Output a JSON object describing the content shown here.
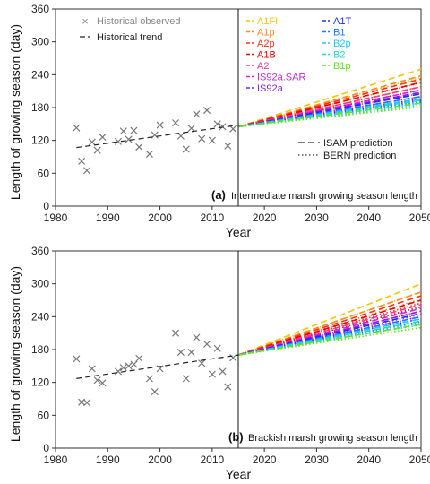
{
  "chart_data": [
    {
      "type": "scatter",
      "panel_label": "(a)",
      "title": "Intermediate marsh growing season length",
      "xlabel": "Year",
      "ylabel": "Length of growing season (day)",
      "xlim": [
        1980,
        2050
      ],
      "ylim": [
        0,
        360
      ],
      "xticks": [
        1980,
        1990,
        2000,
        2010,
        2020,
        2030,
        2040,
        2050
      ],
      "yticks": [
        0,
        60,
        120,
        180,
        240,
        300,
        360
      ],
      "observed": {
        "name": "Historical observed",
        "x": [
          1984,
          1985,
          1986,
          1987,
          1988,
          1989,
          1992,
          1993,
          1994,
          1995,
          1996,
          1998,
          1999,
          2000,
          2003,
          2004,
          2005,
          2006,
          2007,
          2008,
          2009,
          2010,
          2011,
          2012,
          2013,
          2014
        ],
        "y": [
          143,
          82,
          65,
          117,
          102,
          126,
          118,
          137,
          122,
          138,
          108,
          95,
          130,
          148,
          152,
          128,
          104,
          142,
          168,
          123,
          175,
          120,
          150,
          145,
          110,
          141
        ]
      },
      "trend": {
        "name": "Historical trend",
        "x": [
          1984,
          2015
        ],
        "y": [
          107,
          148
        ]
      },
      "divider_year": 2015,
      "projection_start": {
        "year": 2015,
        "value": 145
      },
      "scenarios": [
        {
          "name": "A1FI",
          "color": "#f5c400",
          "isam_2050": 250,
          "bern_2050": 235
        },
        {
          "name": "A1p",
          "color": "#ff8a1c",
          "isam_2050": 238,
          "bern_2050": 225
        },
        {
          "name": "A2p",
          "color": "#ff2d1f",
          "isam_2050": 232,
          "bern_2050": 218
        },
        {
          "name": "A1B",
          "color": "#e80000",
          "isam_2050": 226,
          "bern_2050": 212
        },
        {
          "name": "A2",
          "color": "#ff3399",
          "isam_2050": 218,
          "bern_2050": 206
        },
        {
          "name": "IS92a.SAR",
          "color": "#c428d8",
          "isam_2050": 212,
          "bern_2050": 200
        },
        {
          "name": "IS92a",
          "color": "#8a18e6",
          "isam_2050": 208,
          "bern_2050": 196
        },
        {
          "name": "A1T",
          "color": "#1c2cff",
          "isam_2050": 205,
          "bern_2050": 193
        },
        {
          "name": "B1",
          "color": "#1a78ff",
          "isam_2050": 200,
          "bern_2050": 190
        },
        {
          "name": "B2p",
          "color": "#20c8f0",
          "isam_2050": 196,
          "bern_2050": 187
        },
        {
          "name": "B2",
          "color": "#22d8c8",
          "isam_2050": 193,
          "bern_2050": 184
        },
        {
          "name": "B1p",
          "color": "#66e020",
          "isam_2050": 188,
          "bern_2050": 181
        }
      ],
      "line_legend": {
        "isam": "ISAM prediction",
        "bern": "BERN prediction"
      }
    },
    {
      "type": "scatter",
      "panel_label": "(b)",
      "title": "Brackish marsh growing season length",
      "xlabel": "Year",
      "ylabel": "Length of growing season (day)",
      "xlim": [
        1980,
        2050
      ],
      "ylim": [
        0,
        360
      ],
      "xticks": [
        1980,
        1990,
        2000,
        2010,
        2020,
        2030,
        2040,
        2050
      ],
      "yticks": [
        0,
        60,
        120,
        180,
        240,
        300,
        360
      ],
      "observed": {
        "x": [
          1984,
          1985,
          1986,
          1987,
          1988,
          1989,
          1992,
          1993,
          1994,
          1995,
          1996,
          1998,
          1999,
          2000,
          2003,
          2004,
          2005,
          2006,
          2007,
          2008,
          2009,
          2010,
          2011,
          2012,
          2013,
          2014
        ],
        "y": [
          163,
          84,
          83,
          145,
          124,
          119,
          140,
          147,
          150,
          153,
          164,
          127,
          103,
          145,
          210,
          175,
          127,
          175,
          202,
          155,
          190,
          135,
          182,
          140,
          112,
          165
        ]
      },
      "trend": {
        "x": [
          1984,
          2015
        ],
        "y": [
          127,
          170
        ]
      },
      "divider_year": 2015,
      "projection_start": {
        "year": 2015,
        "value": 170
      },
      "scenarios": [
        {
          "name": "A1FI",
          "color": "#f5c400",
          "isam_2050": 300,
          "bern_2050": 285
        },
        {
          "name": "A1p",
          "color": "#ff8a1c",
          "isam_2050": 285,
          "bern_2050": 272
        },
        {
          "name": "A2p",
          "color": "#ff2d1f",
          "isam_2050": 278,
          "bern_2050": 265
        },
        {
          "name": "A1B",
          "color": "#e80000",
          "isam_2050": 270,
          "bern_2050": 258
        },
        {
          "name": "A2",
          "color": "#ff3399",
          "isam_2050": 262,
          "bern_2050": 250
        },
        {
          "name": "IS92a.SAR",
          "color": "#c428d8",
          "isam_2050": 255,
          "bern_2050": 244
        },
        {
          "name": "IS92a",
          "color": "#8a18e6",
          "isam_2050": 250,
          "bern_2050": 240
        },
        {
          "name": "A1T",
          "color": "#1c2cff",
          "isam_2050": 246,
          "bern_2050": 236
        },
        {
          "name": "B1",
          "color": "#1a78ff",
          "isam_2050": 240,
          "bern_2050": 231
        },
        {
          "name": "B2p",
          "color": "#20c8f0",
          "isam_2050": 236,
          "bern_2050": 228
        },
        {
          "name": "B2",
          "color": "#22d8c8",
          "isam_2050": 232,
          "bern_2050": 225
        },
        {
          "name": "B1p",
          "color": "#66e020",
          "isam_2050": 226,
          "bern_2050": 220
        }
      ]
    }
  ]
}
